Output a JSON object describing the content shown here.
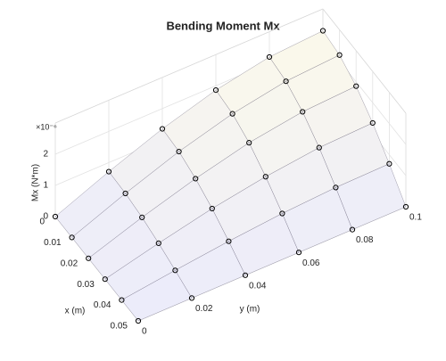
{
  "chart_data": {
    "type": "surface",
    "title": "Bending Moment Mx",
    "xlabel": "x (m)",
    "ylabel": "y (m)",
    "zlabel": "Mx (N*m)",
    "zexponent": "×10⁻⁶",
    "x": [
      0,
      0.01,
      0.02,
      0.03,
      0.04,
      0.05
    ],
    "y": [
      0,
      0.02,
      0.04,
      0.06,
      0.08,
      0.1
    ],
    "z": [
      [
        0,
        7.1e-07,
        1.35e-06,
        1.86e-06,
        2.19e-06,
        2.3e-06
      ],
      [
        0,
        6.8e-07,
        1.29e-06,
        1.77e-06,
        2.08e-06,
        2.19e-06
      ],
      [
        0,
        5.8e-07,
        1.09e-06,
        1.51e-06,
        1.77e-06,
        1.86e-06
      ],
      [
        0,
        4.2e-07,
        8e-07,
        1.09e-06,
        1.29e-06,
        1.35e-06
      ],
      [
        0,
        2.2e-07,
        4.2e-07,
        5.8e-07,
        6.8e-07,
        7.1e-07
      ],
      [
        0,
        0,
        0,
        0,
        0,
        0
      ]
    ],
    "xlim": [
      0,
      0.05
    ],
    "ylim": [
      0,
      0.1
    ],
    "zlim": [
      0,
      3e-06
    ],
    "xticks": [
      0,
      0.01,
      0.02,
      0.03,
      0.04,
      0.05
    ],
    "yticks": [
      0,
      0.02,
      0.04,
      0.06,
      0.08,
      0.1
    ],
    "zticks": [
      0,
      {
        "value": 1e-06,
        "label": "1"
      },
      {
        "value": 2e-06,
        "label": "2"
      }
    ],
    "grid": true,
    "marker_color": "#000000",
    "edge_color": "#3a3550"
  }
}
